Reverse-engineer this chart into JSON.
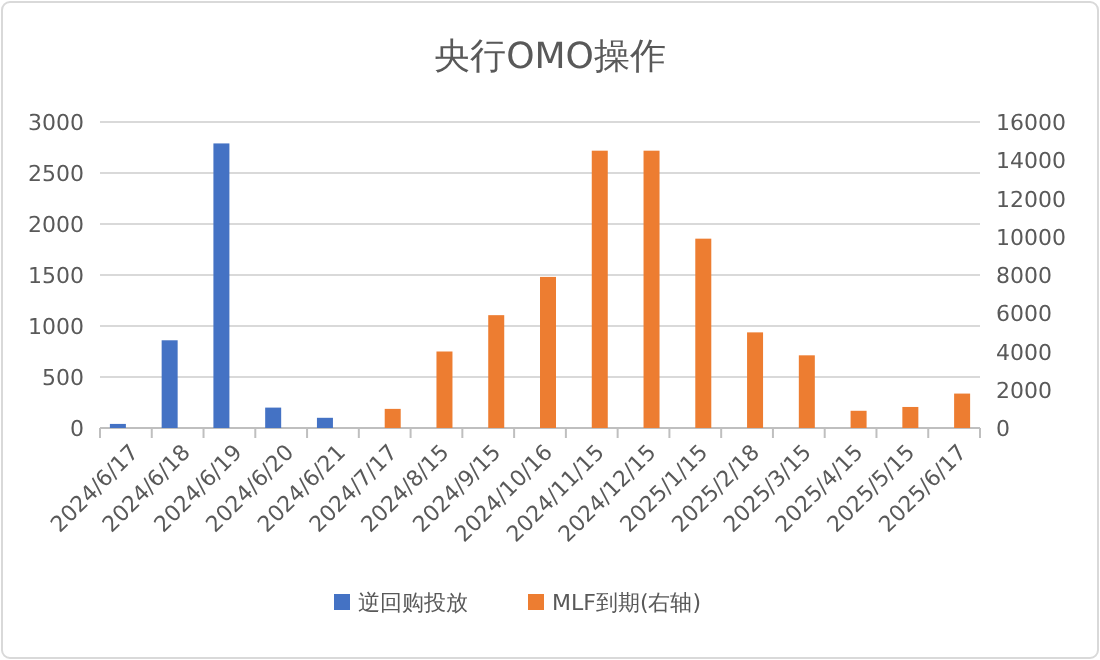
{
  "chart_data": {
    "type": "bar",
    "title": "央行OMO操作",
    "categories": [
      "2024/6/17",
      "2024/6/18",
      "2024/6/19",
      "2024/6/20",
      "2024/6/21",
      "2024/7/17",
      "2024/8/15",
      "2024/9/15",
      "2024/10/16",
      "2024/11/15",
      "2024/12/15",
      "2025/1/15",
      "2025/2/18",
      "2025/3/15",
      "2025/4/15",
      "2025/5/15",
      "2025/6/17"
    ],
    "series": [
      {
        "name": "逆回购投放",
        "color": "#4472c4",
        "values": [
          40,
          860,
          2790,
          200,
          100,
          null,
          null,
          null,
          null,
          null,
          null,
          null,
          null,
          null,
          null,
          null,
          null
        ]
      },
      {
        "name": "MLF到期(右轴)",
        "color": "#ed7d31",
        "axis": "y2",
        "values": [
          null,
          null,
          null,
          null,
          null,
          1000,
          4000,
          5900,
          7900,
          14500,
          14500,
          9900,
          5000,
          3800,
          900,
          1100,
          1800
        ]
      }
    ],
    "ylim": [
      0,
      3000
    ],
    "yticks": [
      0,
      500,
      1000,
      1500,
      2000,
      2500,
      3000
    ],
    "y2lim": [
      0,
      16000
    ],
    "y2ticks": [
      0,
      2000,
      4000,
      6000,
      8000,
      10000,
      12000,
      14000,
      16000
    ],
    "grid": "y",
    "legend": "bottom"
  }
}
